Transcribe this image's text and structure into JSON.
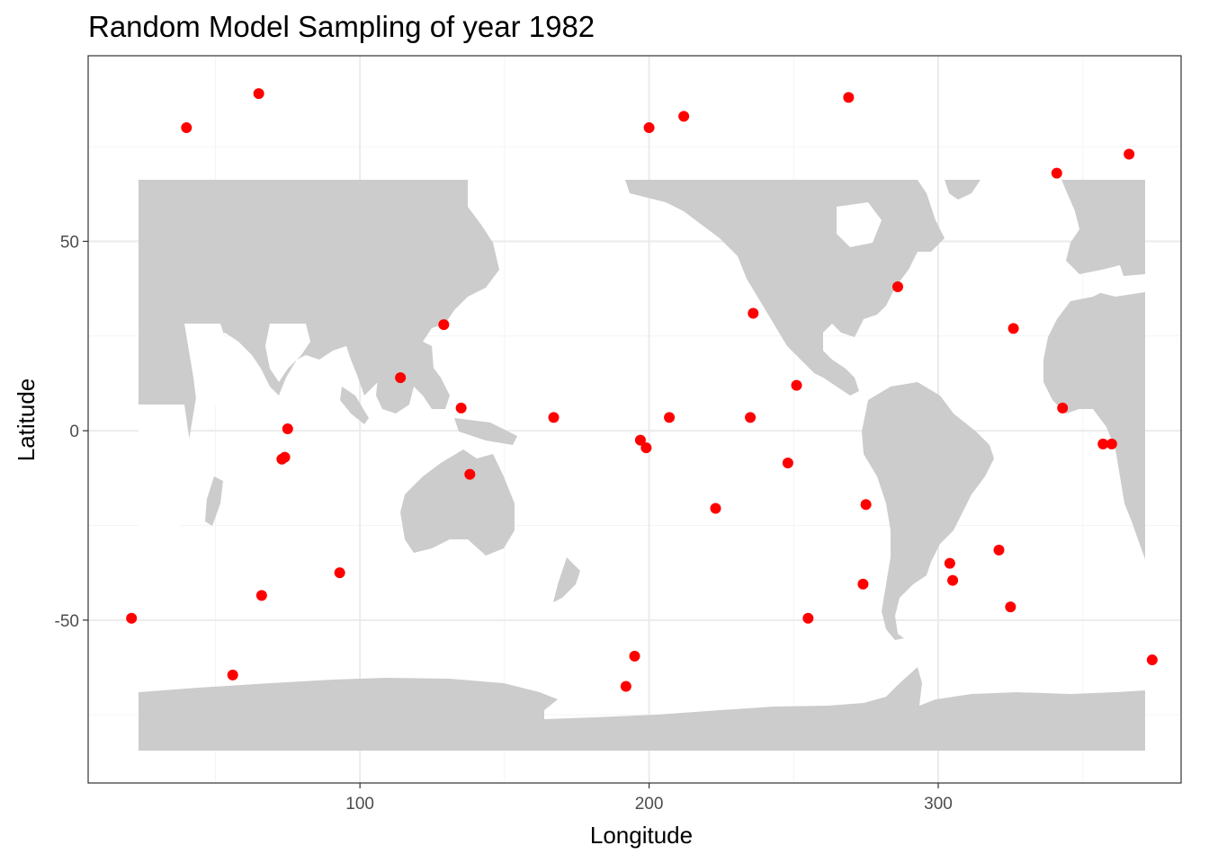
{
  "chart_data": {
    "type": "scatter",
    "title": "Random Model Sampling of year 1982",
    "xlabel": "Longitude",
    "ylabel": "Latitude",
    "xlim": [
      6,
      384
    ],
    "ylim": [
      -93,
      99
    ],
    "xticks": [
      100,
      200,
      300
    ],
    "yticks": [
      -50,
      0,
      50
    ],
    "xtick_labels": [
      "100",
      "200",
      "300"
    ],
    "ytick_labels": [
      "-50",
      "0",
      "50"
    ],
    "grid": true,
    "legend": "none",
    "point_color": "#ff0000",
    "land_color": "#cccccc",
    "points": [
      {
        "x": 40,
        "y": 80
      },
      {
        "x": 65,
        "y": 89
      },
      {
        "x": 200,
        "y": 80
      },
      {
        "x": 212,
        "y": 83
      },
      {
        "x": 269,
        "y": 88
      },
      {
        "x": 366,
        "y": 73
      },
      {
        "x": 341,
        "y": 68
      },
      {
        "x": 286,
        "y": 38
      },
      {
        "x": 236,
        "y": 31
      },
      {
        "x": 129,
        "y": 28
      },
      {
        "x": 326,
        "y": 27
      },
      {
        "x": 114,
        "y": 14
      },
      {
        "x": 251,
        "y": 12
      },
      {
        "x": 135,
        "y": 6
      },
      {
        "x": 343,
        "y": 6
      },
      {
        "x": 75,
        "y": 0.5
      },
      {
        "x": 167,
        "y": 3.5
      },
      {
        "x": 207,
        "y": 3.5
      },
      {
        "x": 235,
        "y": 3.5
      },
      {
        "x": 197,
        "y": -2.5
      },
      {
        "x": 199,
        "y": -4.5
      },
      {
        "x": 357,
        "y": -3.5
      },
      {
        "x": 360,
        "y": -3.5
      },
      {
        "x": 74,
        "y": -7
      },
      {
        "x": 73,
        "y": -7.5
      },
      {
        "x": 248,
        "y": -8.5
      },
      {
        "x": 138,
        "y": -11.5
      },
      {
        "x": 275,
        "y": -19.5
      },
      {
        "x": 223,
        "y": -20.5
      },
      {
        "x": 321,
        "y": -31.5
      },
      {
        "x": 304,
        "y": -35
      },
      {
        "x": 93,
        "y": -37.5
      },
      {
        "x": 305,
        "y": -39.5
      },
      {
        "x": 274,
        "y": -40.5
      },
      {
        "x": 66,
        "y": -43.5
      },
      {
        "x": 325,
        "y": -46.5
      },
      {
        "x": 21,
        "y": -49.5
      },
      {
        "x": 255,
        "y": -49.5
      },
      {
        "x": 195,
        "y": -59.5
      },
      {
        "x": 374,
        "y": -60.5
      },
      {
        "x": 56,
        "y": -64.5
      },
      {
        "x": 192,
        "y": -67.5
      }
    ]
  }
}
